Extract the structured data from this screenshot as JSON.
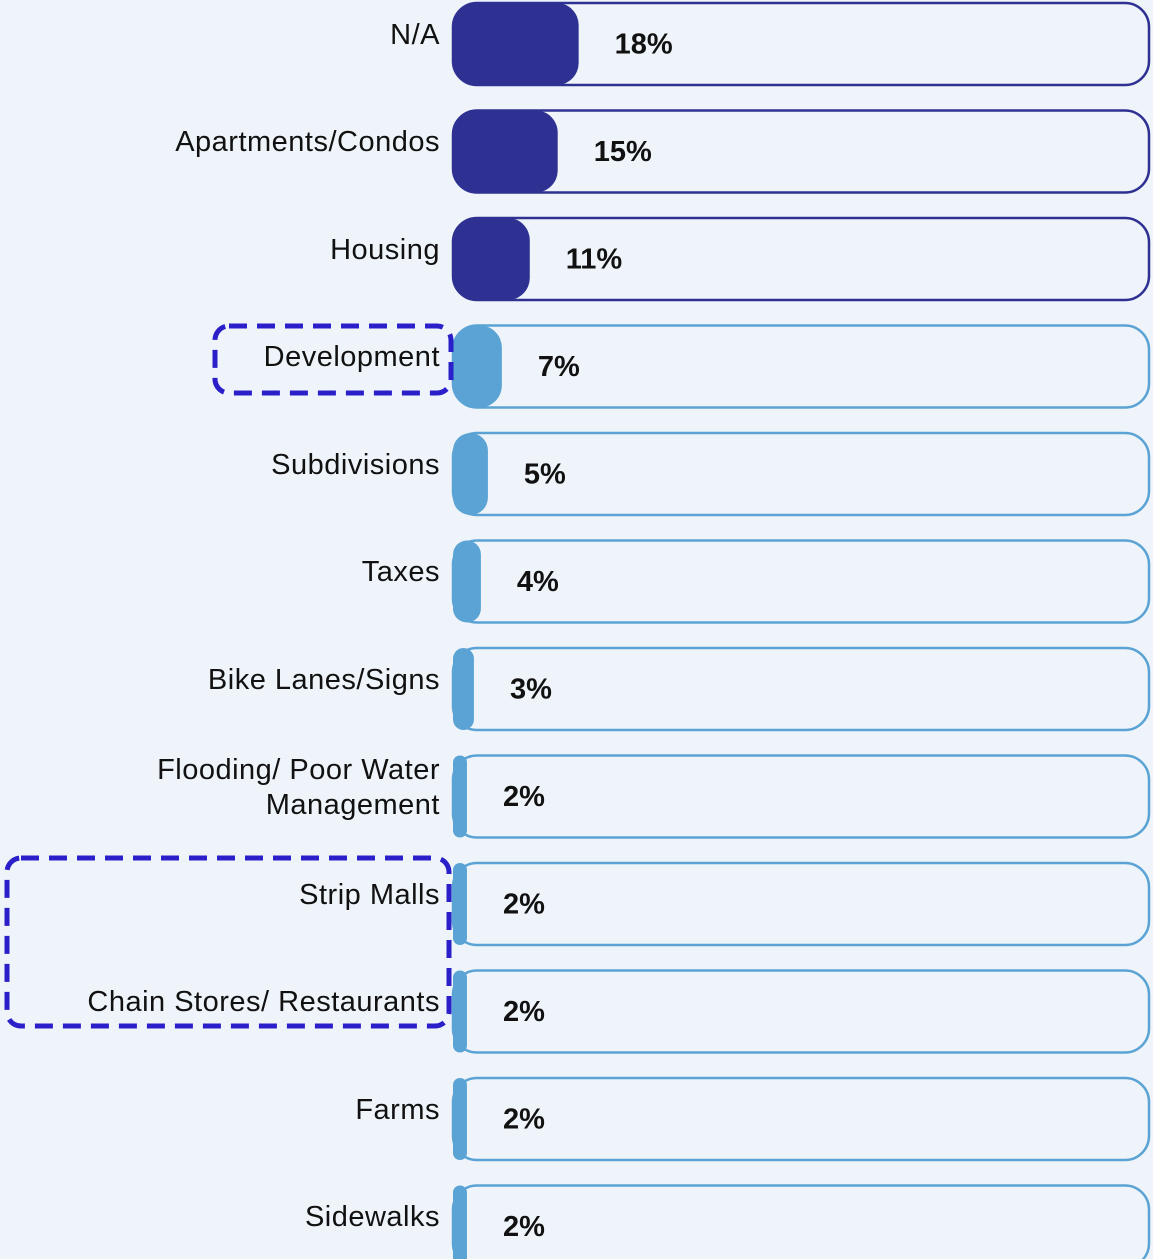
{
  "chart_data": {
    "type": "bar",
    "orientation": "horizontal",
    "categories": [
      "N/A",
      "Apartments/Condos",
      "Housing",
      "Development",
      "Subdivisions",
      "Taxes",
      "Bike Lanes/Signs",
      "Flooding/ Poor Water Management",
      "Strip Malls",
      "Chain Stores/ Restaurants",
      "Farms",
      "Sidewalks"
    ],
    "values": [
      18,
      15,
      11,
      7,
      5,
      4,
      3,
      2,
      2,
      2,
      2,
      2
    ],
    "value_labels": [
      "18%",
      "15%",
      "11%",
      "7%",
      "5%",
      "4%",
      "3%",
      "2%",
      "2%",
      "2%",
      "2%",
      "2%"
    ],
    "colors": [
      "#2e3192",
      "#2e3192",
      "#2e3192",
      "#5aa3d4",
      "#5aa3d4",
      "#5aa3d4",
      "#5aa3d4",
      "#5aa3d4",
      "#5aa3d4",
      "#5aa3d4",
      "#5aa3d4",
      "#5aa3d4"
    ],
    "xlim": [
      0,
      100
    ]
  }
}
